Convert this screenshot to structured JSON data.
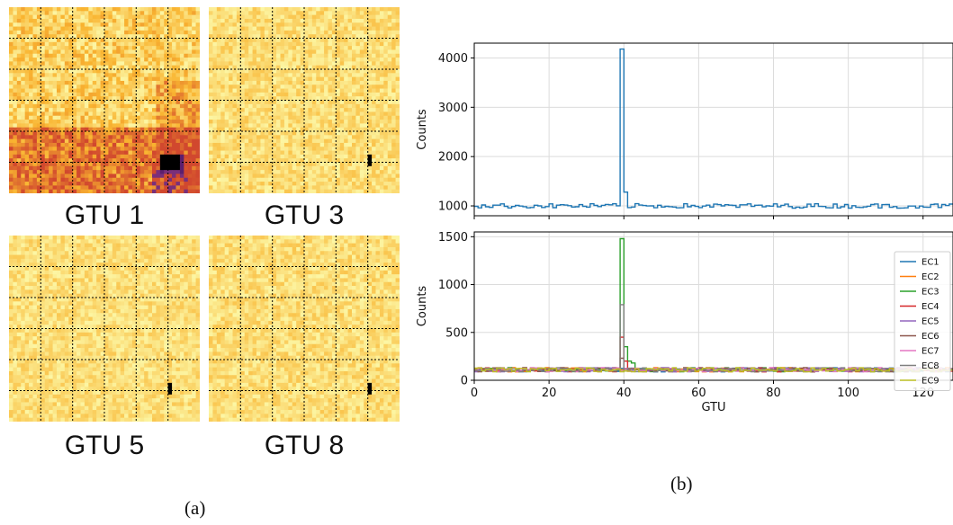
{
  "heatmaps": [
    {
      "label": "GTU 1",
      "intensity": 0.55,
      "hot_spot": "bottom-right dark cluster"
    },
    {
      "label": "GTU 3",
      "intensity": 0.2,
      "hot_spot": "small dark spot near bottom-right"
    },
    {
      "label": "GTU 5",
      "intensity": 0.15,
      "hot_spot": "small dark spot near bottom-right"
    },
    {
      "label": "GTU 8",
      "intensity": 0.18,
      "hot_spot": "small dark spot near bottom-right"
    }
  ],
  "panel_labels": {
    "a": "(a)",
    "b": "(b)"
  },
  "colors": {
    "heatmap_low": "#fcf6a4",
    "heatmap_mid": "#f9b430",
    "heatmap_high": "#d1482e",
    "heatmap_peak": "#000000",
    "grid_line": "#000000"
  },
  "chart_data": [
    {
      "type": "line",
      "style": "step",
      "title": "",
      "xlabel": "",
      "ylabel": "Counts",
      "xlim": [
        0,
        128
      ],
      "ylim": [
        800,
        4300
      ],
      "yticks": [
        1000,
        2000,
        3000,
        4000
      ],
      "grid": true,
      "series": [
        {
          "name": "",
          "color": "#1f77b4",
          "baseline": 1000,
          "spike_x": 39,
          "spike_values": [
            4180,
            1280
          ]
        }
      ]
    },
    {
      "type": "line",
      "style": "step",
      "title": "",
      "xlabel": "GTU",
      "ylabel": "Counts",
      "xlim": [
        0,
        128
      ],
      "ylim": [
        0,
        1550
      ],
      "xticks": [
        0,
        20,
        40,
        60,
        80,
        100,
        120
      ],
      "yticks": [
        0,
        500,
        1000,
        1500
      ],
      "grid": true,
      "legend": "right",
      "series": [
        {
          "name": "EC1",
          "color": "#1f77b4",
          "baseline": 110
        },
        {
          "name": "EC2",
          "color": "#ff7f0e",
          "baseline": 110
        },
        {
          "name": "EC3",
          "color": "#2ca02c",
          "baseline": 110,
          "spike_x": 39,
          "spike_values": [
            1480,
            350,
            200,
            180
          ]
        },
        {
          "name": "EC4",
          "color": "#d62728",
          "baseline": 110,
          "spike_x": 39,
          "spike_values": [
            450,
            200
          ]
        },
        {
          "name": "EC5",
          "color": "#9467bd",
          "baseline": 110
        },
        {
          "name": "EC6",
          "color": "#8c564b",
          "baseline": 110,
          "spike_x": 39,
          "spike_values": [
            230
          ]
        },
        {
          "name": "EC7",
          "color": "#e377c2",
          "baseline": 110
        },
        {
          "name": "EC8",
          "color": "#7f7f7f",
          "baseline": 110,
          "spike_x": 39,
          "spike_values": [
            790
          ]
        },
        {
          "name": "EC9",
          "color": "#bcbd22",
          "baseline": 110
        }
      ]
    }
  ]
}
